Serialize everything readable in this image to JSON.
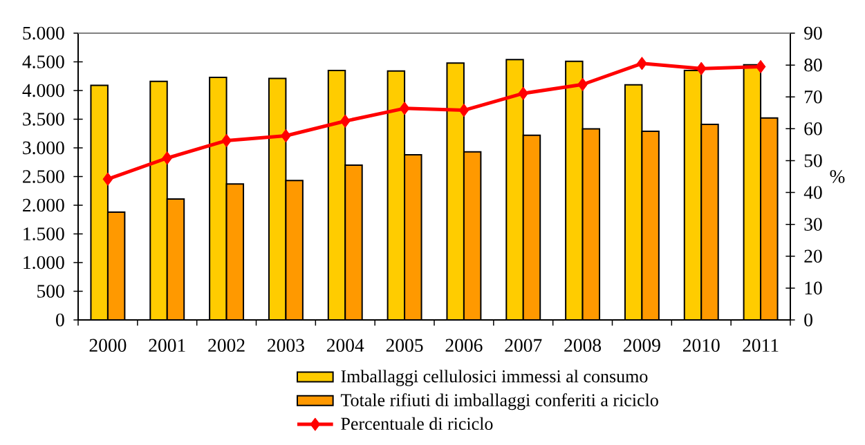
{
  "chart_data": {
    "type": "bar",
    "categories": [
      "2000",
      "2001",
      "2002",
      "2003",
      "2004",
      "2005",
      "2006",
      "2007",
      "2008",
      "2009",
      "2010",
      "2011"
    ],
    "series": [
      {
        "name": "Imballaggi cellulosici immessi al consumo",
        "color": "#ffcc00",
        "values": [
          4090,
          4160,
          4230,
          4210,
          4350,
          4340,
          4480,
          4540,
          4510,
          4100,
          4350,
          4450
        ]
      },
      {
        "name": "Totale rifiuti di imballaggi conferiti a riciclo",
        "color": "#ff9900",
        "values": [
          1880,
          2110,
          2370,
          2430,
          2700,
          2880,
          2930,
          3220,
          3330,
          3290,
          3410,
          3520
        ]
      },
      {
        "name": "Percentuale di riciclo",
        "type": "line",
        "axis": "y2",
        "color": "#ff0000",
        "marker": "diamond",
        "line_style": "solid",
        "values": [
          44.2,
          50.8,
          56.3,
          57.8,
          62.4,
          66.4,
          65.8,
          71.1,
          73.9,
          80.5,
          78.9,
          79.5
        ]
      }
    ],
    "ylim": [
      0,
      5000
    ],
    "yticks": [
      0,
      500,
      {
        "value": 1000,
        "label": "1.000"
      },
      {
        "value": 1500,
        "label": "1.500"
      },
      {
        "value": 2000,
        "label": "2.000"
      },
      {
        "value": 2500,
        "label": "2.500"
      },
      {
        "value": 3000,
        "label": "3.000"
      },
      {
        "value": 3500,
        "label": "3.500"
      },
      {
        "value": 4000,
        "label": "4.000"
      },
      {
        "value": 4500,
        "label": "4.500"
      },
      {
        "value": 5000,
        "label": "5.000"
      }
    ],
    "y2lim": [
      0,
      90
    ],
    "y2ticks": [
      0,
      10,
      20,
      30,
      40,
      50,
      60,
      70,
      80,
      90
    ],
    "y2label": "%",
    "legend": "bottom"
  }
}
